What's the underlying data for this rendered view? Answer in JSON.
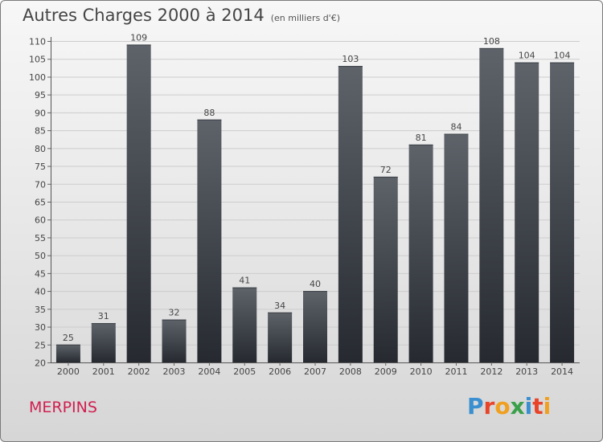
{
  "header": {
    "title": "Autres Charges 2000 à 2014",
    "subtitle": "(en milliers d'€)"
  },
  "footer": {
    "commune": "MERPINS",
    "logo_text": "Proxiti",
    "logo_colors": [
      "#3a8fd0",
      "#e8442a",
      "#f0a020",
      "#3aa04a",
      "#3a8fd0",
      "#e8442a",
      "#f0a020"
    ]
  },
  "chart_data": {
    "type": "bar",
    "categories": [
      "2000",
      "2001",
      "2002",
      "2003",
      "2004",
      "2005",
      "2006",
      "2007",
      "2008",
      "2009",
      "2010",
      "2011",
      "2012",
      "2013",
      "2014"
    ],
    "values": [
      25,
      31,
      109,
      32,
      88,
      41,
      34,
      40,
      103,
      72,
      81,
      84,
      108,
      104,
      104
    ],
    "ylim": [
      20,
      110
    ],
    "yticks": [
      20,
      25,
      30,
      35,
      40,
      45,
      50,
      55,
      60,
      65,
      70,
      75,
      80,
      85,
      90,
      95,
      100,
      105,
      110
    ],
    "grid": true,
    "data_labels": true,
    "bar_color_top": "#5e636a",
    "bar_color_bottom": "#262a30"
  }
}
